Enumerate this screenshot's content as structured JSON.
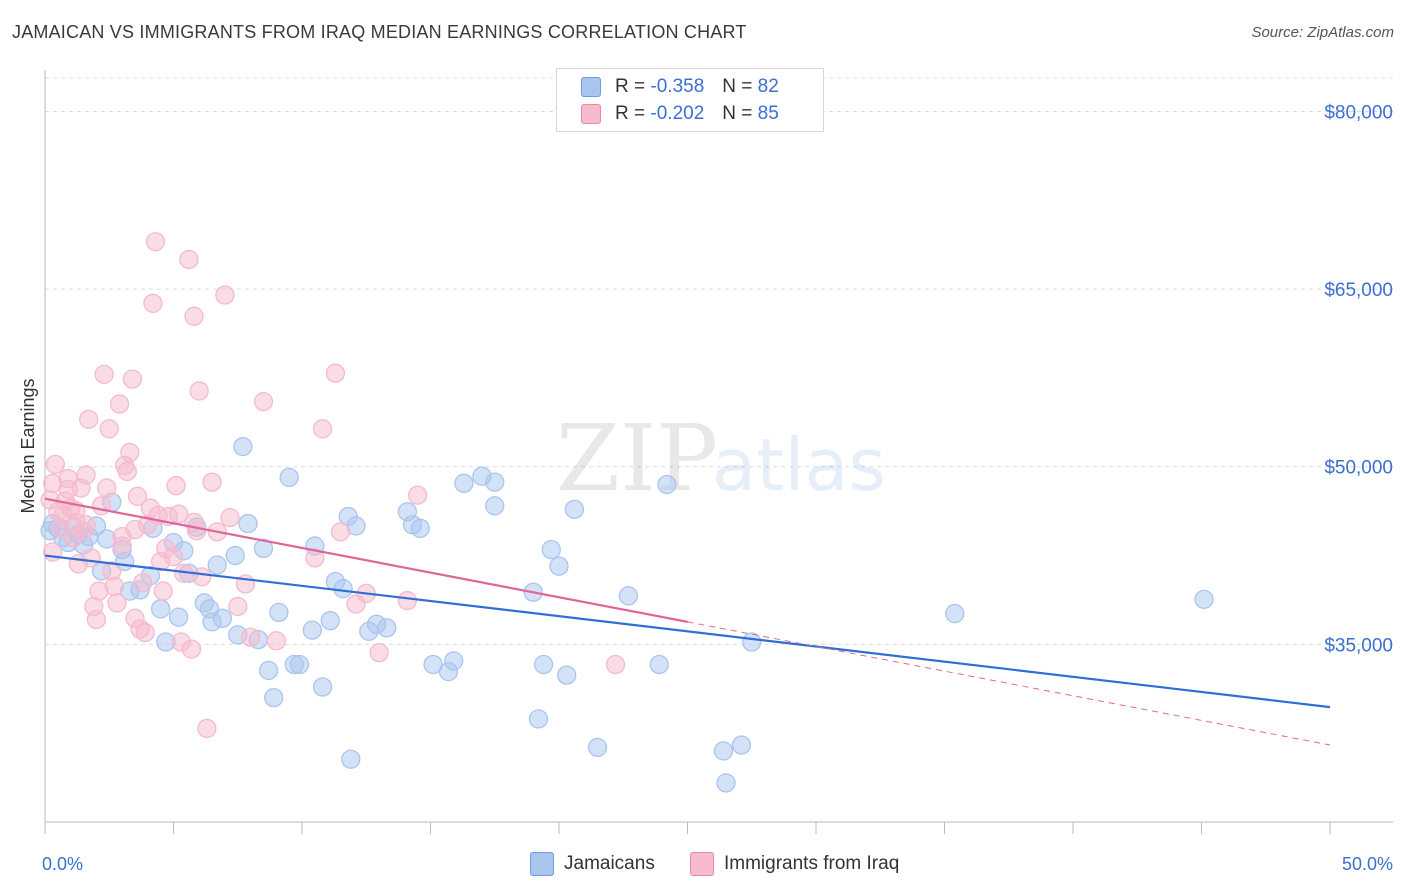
{
  "title": "JAMAICAN VS IMMIGRANTS FROM IRAQ MEDIAN EARNINGS CORRELATION CHART",
  "source": "Source: ZipAtlas.com",
  "watermark": {
    "zip": "ZIP",
    "atlas": "atlas"
  },
  "legend_top": [
    {
      "r_label": "R =",
      "r_value": "-0.358",
      "n_label": "N =",
      "n_value": "82",
      "color": "#a9c5ef"
    },
    {
      "r_label": "R =",
      "r_value": "-0.202",
      "n_label": "N =",
      "n_value": "85",
      "color": "#f6b9cd"
    }
  ],
  "legend_bottom": [
    {
      "label": "Jamaicans",
      "color": "#a9c5ef"
    },
    {
      "label": "Immigrants from Iraq",
      "color": "#f6b9cd"
    }
  ],
  "chart_data": {
    "type": "scatter",
    "title": "JAMAICAN VS IMMIGRANTS FROM IRAQ MEDIAN EARNINGS CORRELATION CHART",
    "xlabel": "",
    "ylabel": "Median Earnings",
    "xlim": [
      0,
      50
    ],
    "ylim": [
      20000,
      83500
    ],
    "x_tick_labels": [
      "0.0%",
      "50.0%"
    ],
    "y_ticks": [
      35000,
      50000,
      65000,
      80000
    ],
    "y_tick_labels": [
      "$35,000",
      "$50,000",
      "$65,000",
      "$80,000"
    ],
    "grid": true,
    "legend_position": "top-center",
    "series": [
      {
        "name": "Jamaicans",
        "color": "#4a86d8",
        "fill": "#a9c5ef",
        "trend": {
          "x": [
            0,
            50
          ],
          "y": [
            42500,
            29700
          ]
        },
        "points": [
          [
            0.3,
            45200
          ],
          [
            0.5,
            44800
          ],
          [
            0.7,
            44000
          ],
          [
            0.9,
            43600
          ],
          [
            1.1,
            45000
          ],
          [
            1.3,
            44300
          ],
          [
            1.5,
            43400
          ],
          [
            1.7,
            44100
          ],
          [
            2.0,
            45000
          ],
          [
            2.2,
            41200
          ],
          [
            2.4,
            43900
          ],
          [
            2.6,
            47000
          ],
          [
            3.0,
            43000
          ],
          [
            3.1,
            42000
          ],
          [
            3.3,
            39500
          ],
          [
            3.7,
            39600
          ],
          [
            4.1,
            40800
          ],
          [
            4.2,
            44800
          ],
          [
            4.5,
            38000
          ],
          [
            4.7,
            35200
          ],
          [
            5.0,
            43600
          ],
          [
            5.2,
            37300
          ],
          [
            5.4,
            42900
          ],
          [
            5.6,
            41000
          ],
          [
            5.9,
            44900
          ],
          [
            6.2,
            38500
          ],
          [
            6.4,
            38000
          ],
          [
            6.5,
            36900
          ],
          [
            6.7,
            41700
          ],
          [
            6.9,
            37200
          ],
          [
            7.4,
            42500
          ],
          [
            7.5,
            35800
          ],
          [
            7.7,
            51700
          ],
          [
            7.9,
            45200
          ],
          [
            8.3,
            35400
          ],
          [
            8.5,
            43100
          ],
          [
            8.7,
            32800
          ],
          [
            8.9,
            30500
          ],
          [
            9.1,
            37700
          ],
          [
            9.5,
            49100
          ],
          [
            9.7,
            33300
          ],
          [
            9.9,
            33300
          ],
          [
            10.4,
            36200
          ],
          [
            10.5,
            43300
          ],
          [
            10.8,
            31400
          ],
          [
            11.1,
            37000
          ],
          [
            11.3,
            40300
          ],
          [
            11.6,
            39700
          ],
          [
            11.8,
            45800
          ],
          [
            11.9,
            25300
          ],
          [
            12.1,
            45000
          ],
          [
            12.6,
            36100
          ],
          [
            12.9,
            36700
          ],
          [
            13.3,
            36400
          ],
          [
            14.1,
            46200
          ],
          [
            14.3,
            45100
          ],
          [
            14.6,
            44800
          ],
          [
            15.1,
            33300
          ],
          [
            15.7,
            32700
          ],
          [
            15.9,
            33600
          ],
          [
            16.3,
            48600
          ],
          [
            17.0,
            49200
          ],
          [
            17.5,
            48700
          ],
          [
            17.5,
            46700
          ],
          [
            19.0,
            39400
          ],
          [
            19.2,
            28700
          ],
          [
            19.4,
            33300
          ],
          [
            19.7,
            43000
          ],
          [
            20.0,
            41600
          ],
          [
            20.3,
            32400
          ],
          [
            20.6,
            46400
          ],
          [
            21.5,
            26300
          ],
          [
            22.7,
            39100
          ],
          [
            23.9,
            33300
          ],
          [
            24.2,
            48500
          ],
          [
            26.4,
            26000
          ],
          [
            26.5,
            23300
          ],
          [
            27.1,
            26500
          ],
          [
            27.5,
            35200
          ],
          [
            35.4,
            37600
          ],
          [
            45.1,
            38800
          ],
          [
            0.2,
            44600
          ]
        ]
      },
      {
        "name": "Immigrants from Iraq",
        "color": "#e0739b",
        "fill": "#f6b9cd",
        "trend": {
          "x": [
            0,
            50
          ],
          "y": [
            47300,
            26500
          ],
          "solid_until_x": 25
        },
        "points": [
          [
            0.2,
            47200
          ],
          [
            0.3,
            48600
          ],
          [
            0.4,
            50200
          ],
          [
            0.5,
            46200
          ],
          [
            0.6,
            44800
          ],
          [
            0.7,
            45900
          ],
          [
            0.8,
            47100
          ],
          [
            0.9,
            49000
          ],
          [
            1.0,
            46500
          ],
          [
            1.1,
            44000
          ],
          [
            1.2,
            45300
          ],
          [
            1.3,
            41800
          ],
          [
            1.4,
            48200
          ],
          [
            1.5,
            44600
          ],
          [
            1.6,
            49300
          ],
          [
            1.7,
            54000
          ],
          [
            1.9,
            38200
          ],
          [
            2.0,
            37100
          ],
          [
            2.1,
            39500
          ],
          [
            2.3,
            57800
          ],
          [
            2.4,
            48200
          ],
          [
            2.5,
            53200
          ],
          [
            2.6,
            41200
          ],
          [
            2.7,
            39900
          ],
          [
            2.8,
            38500
          ],
          [
            2.9,
            55300
          ],
          [
            3.0,
            43300
          ],
          [
            3.1,
            50100
          ],
          [
            3.2,
            49600
          ],
          [
            3.3,
            51200
          ],
          [
            3.4,
            57400
          ],
          [
            3.5,
            44700
          ],
          [
            3.6,
            47500
          ],
          [
            3.7,
            36300
          ],
          [
            3.8,
            40200
          ],
          [
            3.9,
            36000
          ],
          [
            4.0,
            45100
          ],
          [
            4.1,
            46500
          ],
          [
            4.2,
            63800
          ],
          [
            4.3,
            69000
          ],
          [
            4.5,
            42000
          ],
          [
            4.6,
            39500
          ],
          [
            4.7,
            43100
          ],
          [
            4.8,
            45800
          ],
          [
            5.0,
            42400
          ],
          [
            5.1,
            48400
          ],
          [
            5.2,
            46000
          ],
          [
            5.3,
            35200
          ],
          [
            5.4,
            41000
          ],
          [
            5.6,
            67500
          ],
          [
            5.7,
            34600
          ],
          [
            5.8,
            62700
          ],
          [
            5.9,
            44600
          ],
          [
            6.0,
            56400
          ],
          [
            6.1,
            40700
          ],
          [
            6.3,
            27900
          ],
          [
            6.5,
            48700
          ],
          [
            7.0,
            64500
          ],
          [
            7.2,
            45700
          ],
          [
            7.5,
            38200
          ],
          [
            7.8,
            40100
          ],
          [
            8.5,
            55500
          ],
          [
            9.0,
            35300
          ],
          [
            10.5,
            42300
          ],
          [
            10.8,
            53200
          ],
          [
            11.3,
            57900
          ],
          [
            11.5,
            44500
          ],
          [
            12.1,
            38400
          ],
          [
            12.5,
            39300
          ],
          [
            13.0,
            34300
          ],
          [
            14.1,
            38700
          ],
          [
            14.5,
            47600
          ],
          [
            22.2,
            33300
          ],
          [
            0.3,
            42800
          ],
          [
            0.9,
            48100
          ],
          [
            1.2,
            46300
          ],
          [
            1.6,
            45100
          ],
          [
            2.2,
            46700
          ],
          [
            3.0,
            44100
          ],
          [
            3.5,
            37200
          ],
          [
            4.4,
            45900
          ],
          [
            5.8,
            45300
          ],
          [
            6.7,
            44500
          ],
          [
            8.0,
            35600
          ],
          [
            1.8,
            42300
          ]
        ]
      }
    ]
  }
}
